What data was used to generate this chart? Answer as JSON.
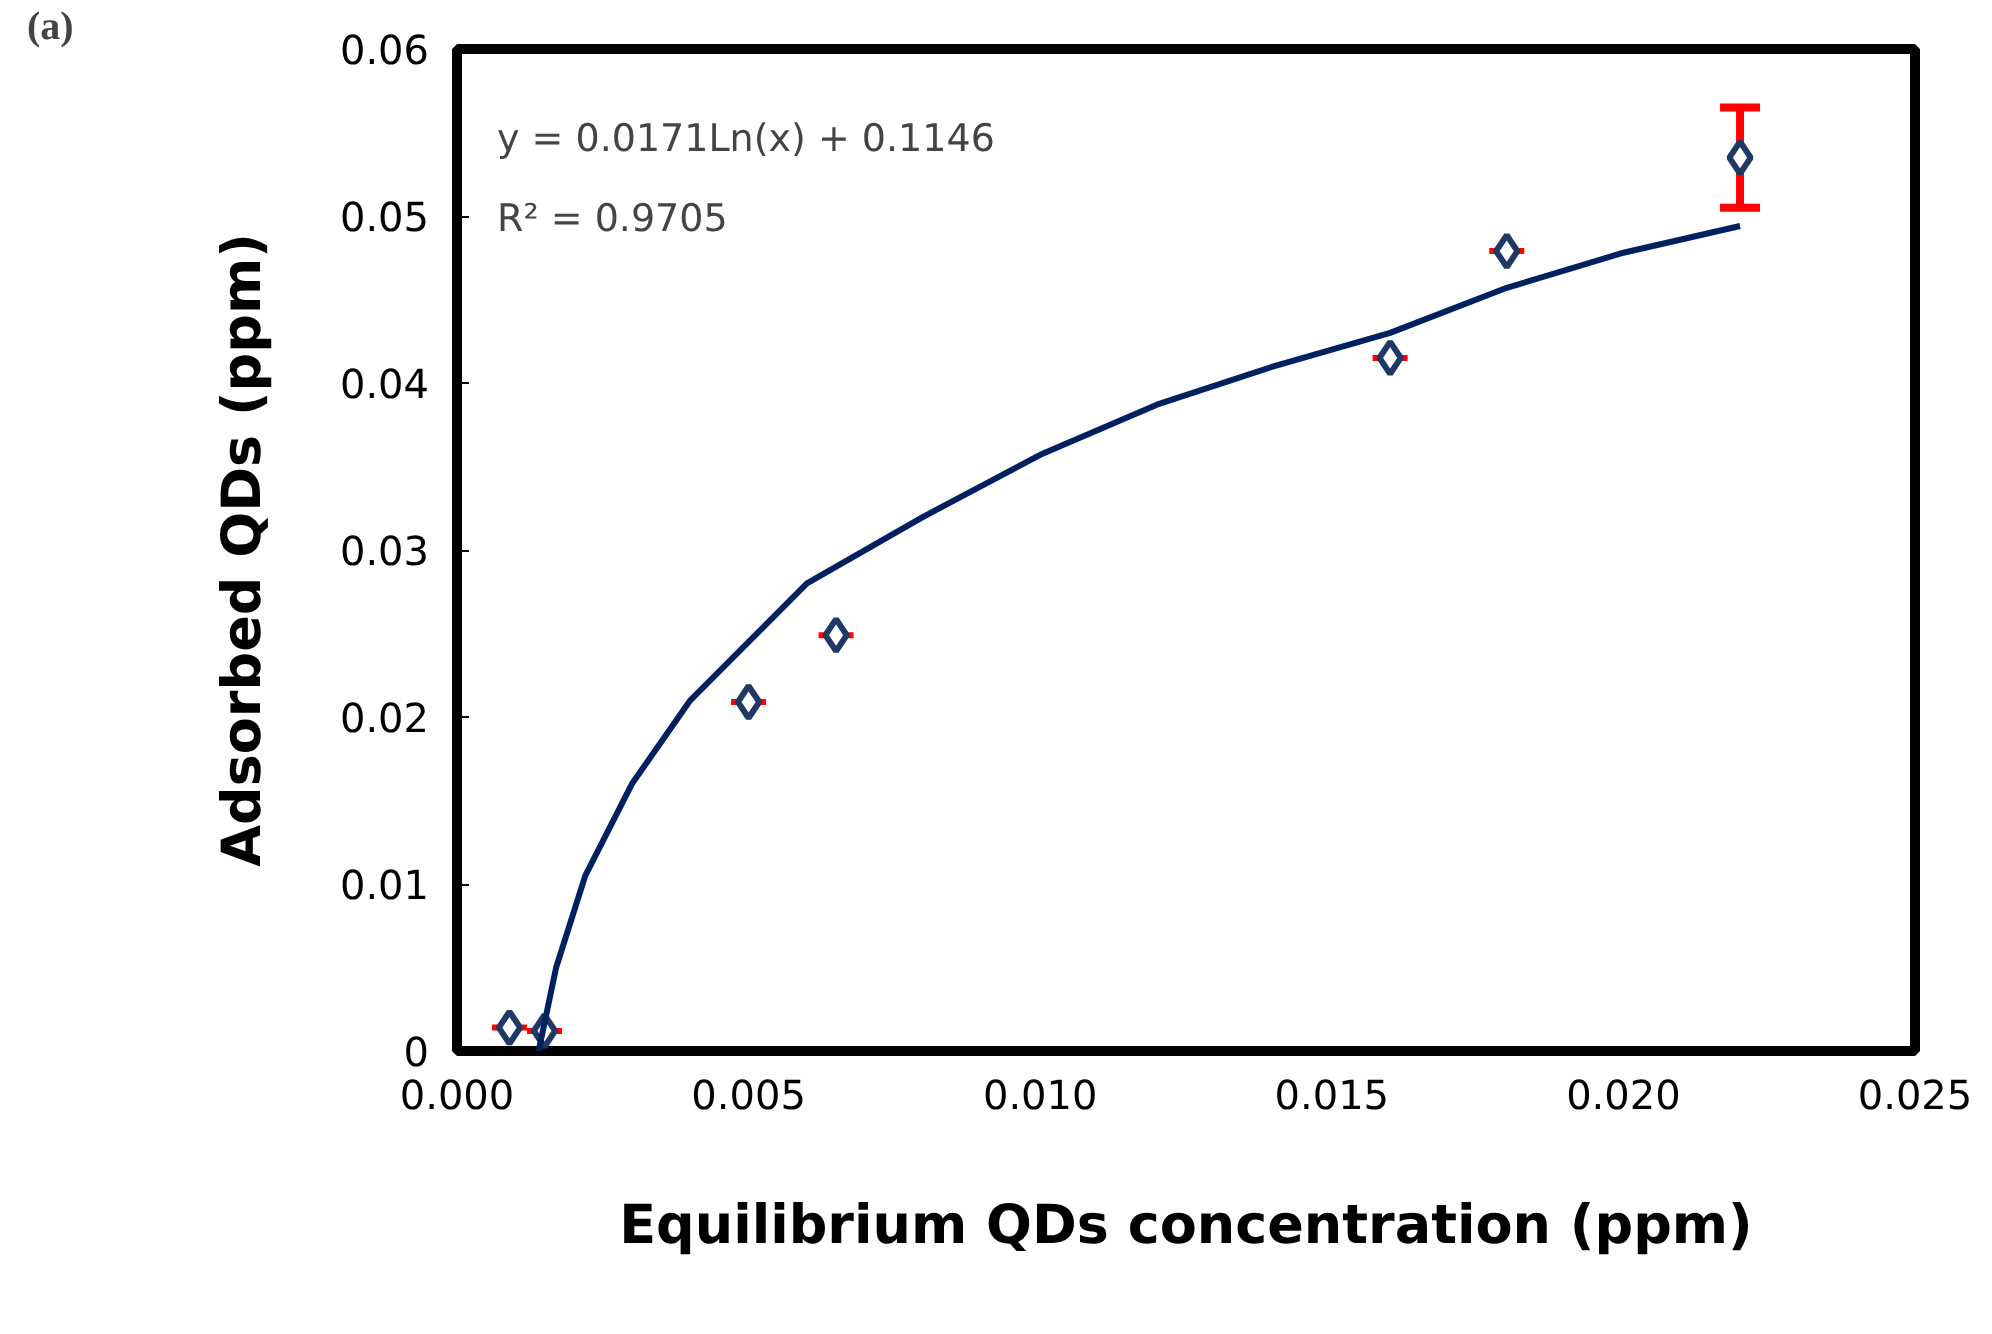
{
  "chart_data": {
    "type": "scatter",
    "xlabel": "Equilibrium QDs concentration (ppm)",
    "ylabel": "Adsorbed QDs (ppm)",
    "xlim": [
      0,
      0.025
    ],
    "ylim": [
      0,
      0.06
    ],
    "xticks": [
      {
        "value": 0,
        "label": "0.000"
      },
      {
        "value": 0.005,
        "label": "0.005"
      },
      {
        "value": 0.01,
        "label": "0.010"
      },
      {
        "value": 0.015,
        "label": "0.015"
      },
      {
        "value": 0.02,
        "label": "0.020"
      },
      {
        "value": 0.025,
        "label": "0.025"
      }
    ],
    "yticks": [
      0,
      0.01,
      0.02,
      0.03,
      0.04,
      0.05,
      0.06
    ],
    "grid": false,
    "series": [
      {
        "marker": "diamond",
        "color": "#1f3864",
        "x": [
          0.0009,
          0.0015,
          0.005,
          0.0065,
          0.016,
          0.018,
          0.022
        ],
        "values": [
          0.0014,
          0.0012,
          0.0209,
          0.0249,
          0.0415,
          0.0479,
          0.0535
        ],
        "errors": [
          null,
          null,
          null,
          null,
          null,
          null,
          0.003
        ],
        "xerrors": [
          0.0003,
          0.0003,
          0.0003,
          0.0003,
          0.0003,
          0.0003,
          null
        ]
      },
      {
        "type": "line",
        "color": "#002060",
        "x": [
          0.0014,
          0.0017,
          0.0022,
          0.003,
          0.004,
          0.005,
          0.006,
          0.008,
          0.01,
          0.012,
          0.014,
          0.016,
          0.018,
          0.02,
          0.022
        ],
        "values": [
          0.0,
          0.005,
          0.0105,
          0.016,
          0.021,
          0.0245,
          0.028,
          0.032,
          0.0357,
          0.0387,
          0.041,
          0.043,
          0.0457,
          0.0478,
          0.0494
        ]
      }
    ],
    "annotations": [
      "y = 0.0171Ln(x) + 0.1146",
      "R² = 0.9705",
      "(a)"
    ]
  }
}
